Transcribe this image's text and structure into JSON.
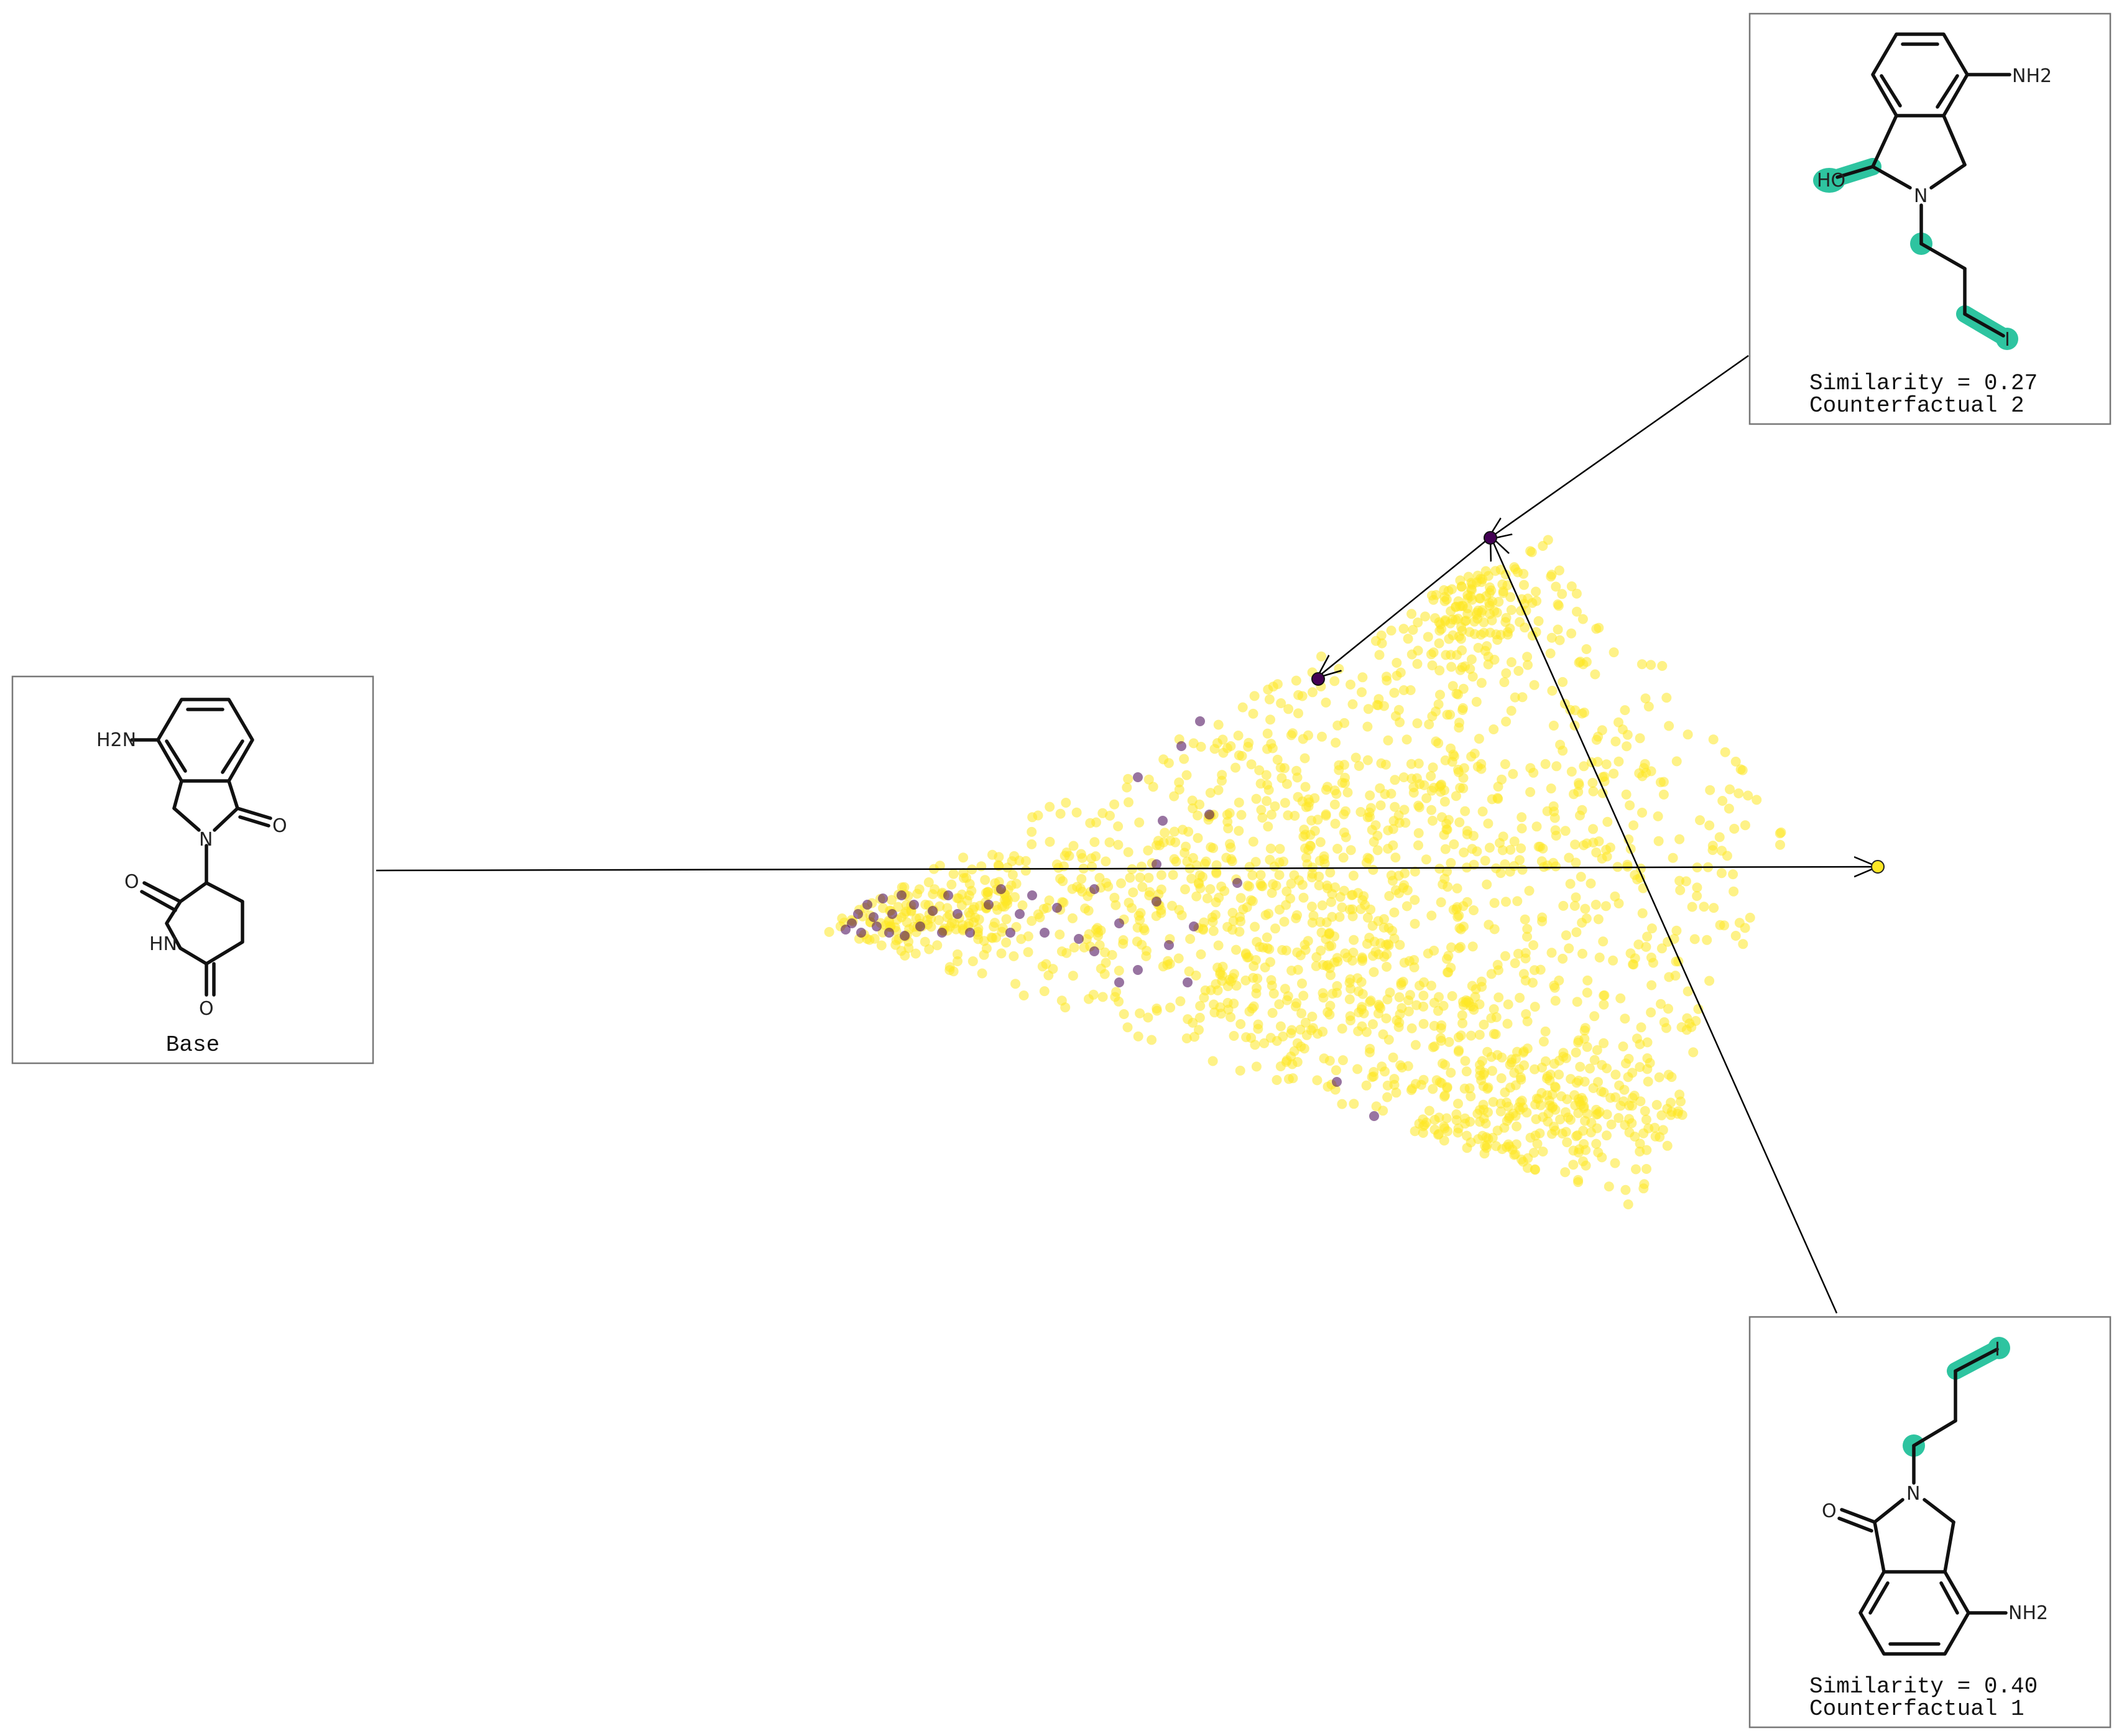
{
  "panels": {
    "base": {
      "caption": "Base",
      "atoms": {
        "nh2": "H2N",
        "o_top": "O",
        "n_ring": "N",
        "o_left": "O",
        "nh": "HN",
        "o_bottom": "O"
      }
    },
    "cf2": {
      "similarity": "Similarity = 0.27",
      "label": "Counterfactual 2",
      "atoms": {
        "nh2": "NH2",
        "ho": "HO",
        "n_ring": "N",
        "i": "I"
      }
    },
    "cf1": {
      "similarity": "Similarity = 0.40",
      "label": "Counterfactual 1",
      "atoms": {
        "i": "I",
        "n_ring": "N",
        "o": "O",
        "nh2": "NH2"
      }
    }
  },
  "colors": {
    "active": "#FDE725",
    "inactive": "#440154",
    "highlight": "#2EC4A0",
    "bond": "#111111",
    "frame": "#777777"
  },
  "scatter": {
    "type": "scatter",
    "n_active": 1700,
    "n_inactive": 45,
    "labels": [
      "inactive",
      "active"
    ]
  }
}
